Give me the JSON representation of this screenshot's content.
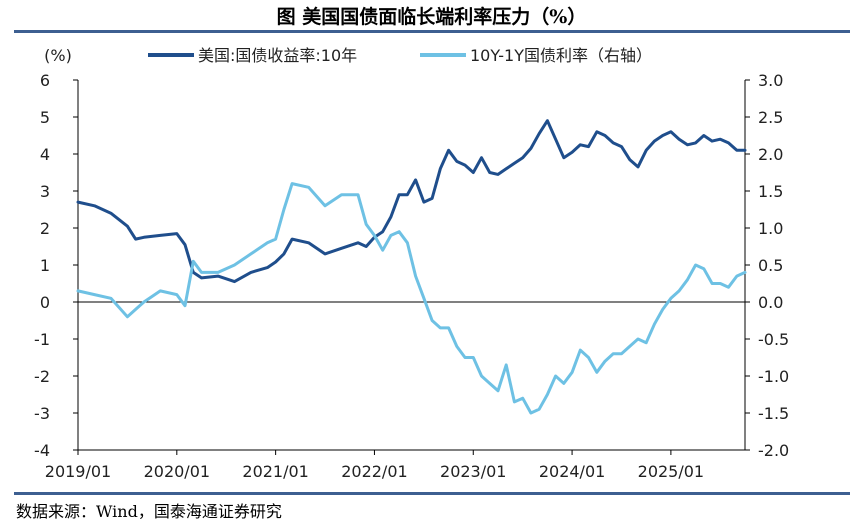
{
  "title": "图  美国国债面临长端利率压力（%）",
  "source": "数据来源：Wind，国泰海通证券研究",
  "colors": {
    "series1": "#1f4e8c",
    "series2": "#6ec1e4",
    "rule": "#3d5f91",
    "axis": "#000000"
  },
  "chart_data": {
    "type": "line",
    "x_ticks": [
      "2019/01",
      "2020/01",
      "2021/01",
      "2022/01",
      "2023/01",
      "2024/01",
      "2025/01"
    ],
    "x_range": [
      "2019/01",
      "2025/10"
    ],
    "left_axis": {
      "label": "(%)",
      "min": -4,
      "max": 6,
      "ticks": [
        "6",
        "5",
        "4",
        "3",
        "2",
        "1",
        "0",
        "-1",
        "-2",
        "-3",
        "-4"
      ]
    },
    "right_axis": {
      "min": -2.0,
      "max": 3.0,
      "ticks": [
        "3.0",
        "2.5",
        "2.0",
        "1.5",
        "1.0",
        "0.5",
        "0.0",
        "-0.5",
        "-1.0",
        "-1.5",
        "-2.0"
      ]
    },
    "grid": false,
    "legend_position": "top",
    "series": [
      {
        "name": "美国:国债收益率:10年",
        "axis": "left",
        "x": [
          "2019/01",
          "2019/03",
          "2019/05",
          "2019/07",
          "2019/08",
          "2019/09",
          "2019/11",
          "2020/01",
          "2020/02",
          "2020/03",
          "2020/04",
          "2020/06",
          "2020/08",
          "2020/10",
          "2020/12",
          "2021/01",
          "2021/02",
          "2021/03",
          "2021/05",
          "2021/07",
          "2021/09",
          "2021/11",
          "2021/12",
          "2022/01",
          "2022/02",
          "2022/03",
          "2022/04",
          "2022/05",
          "2022/06",
          "2022/07",
          "2022/08",
          "2022/09",
          "2022/10",
          "2022/11",
          "2022/12",
          "2023/01",
          "2023/02",
          "2023/03",
          "2023/04",
          "2023/05",
          "2023/06",
          "2023/07",
          "2023/08",
          "2023/09",
          "2023/10",
          "2023/11",
          "2023/12",
          "2024/01",
          "2024/02",
          "2024/03",
          "2024/04",
          "2024/05",
          "2024/06",
          "2024/07",
          "2024/08",
          "2024/09",
          "2024/10",
          "2024/11",
          "2024/12",
          "2025/01",
          "2025/02",
          "2025/03",
          "2025/04",
          "2025/05",
          "2025/06",
          "2025/07",
          "2025/08",
          "2025/09",
          "2025/10"
        ],
        "y": [
          2.7,
          2.6,
          2.4,
          2.05,
          1.7,
          1.75,
          1.8,
          1.85,
          1.55,
          0.8,
          0.65,
          0.7,
          0.55,
          0.8,
          0.93,
          1.08,
          1.3,
          1.7,
          1.6,
          1.3,
          1.45,
          1.6,
          1.5,
          1.75,
          1.9,
          2.3,
          2.9,
          2.9,
          3.3,
          2.7,
          2.8,
          3.6,
          4.1,
          3.8,
          3.7,
          3.5,
          3.9,
          3.5,
          3.45,
          3.6,
          3.75,
          3.9,
          4.15,
          4.55,
          4.9,
          4.4,
          3.9,
          4.05,
          4.25,
          4.2,
          4.6,
          4.5,
          4.3,
          4.2,
          3.85,
          3.65,
          4.1,
          4.35,
          4.5,
          4.6,
          4.4,
          4.25,
          4.3,
          4.5,
          4.35,
          4.4,
          4.3,
          4.1,
          4.1
        ]
      },
      {
        "name": "10Y-1Y国债利率（右轴）",
        "axis": "right",
        "x": [
          "2019/01",
          "2019/03",
          "2019/05",
          "2019/07",
          "2019/08",
          "2019/09",
          "2019/11",
          "2020/01",
          "2020/02",
          "2020/03",
          "2020/04",
          "2020/06",
          "2020/08",
          "2020/10",
          "2020/12",
          "2021/01",
          "2021/02",
          "2021/03",
          "2021/05",
          "2021/07",
          "2021/09",
          "2021/11",
          "2021/12",
          "2022/01",
          "2022/02",
          "2022/03",
          "2022/04",
          "2022/05",
          "2022/06",
          "2022/07",
          "2022/08",
          "2022/09",
          "2022/10",
          "2022/11",
          "2022/12",
          "2023/01",
          "2023/02",
          "2023/03",
          "2023/04",
          "2023/05",
          "2023/06",
          "2023/07",
          "2023/08",
          "2023/09",
          "2023/10",
          "2023/11",
          "2023/12",
          "2024/01",
          "2024/02",
          "2024/03",
          "2024/04",
          "2024/05",
          "2024/06",
          "2024/07",
          "2024/08",
          "2024/09",
          "2024/10",
          "2024/11",
          "2024/12",
          "2025/01",
          "2025/02",
          "2025/03",
          "2025/04",
          "2025/05",
          "2025/06",
          "2025/07",
          "2025/08",
          "2025/09",
          "2025/10"
        ],
        "y": [
          0.15,
          0.1,
          0.05,
          -0.2,
          -0.1,
          0.0,
          0.15,
          0.1,
          -0.05,
          0.55,
          0.4,
          0.4,
          0.5,
          0.65,
          0.8,
          0.85,
          1.25,
          1.6,
          1.55,
          1.3,
          1.45,
          1.45,
          1.05,
          0.9,
          0.7,
          0.9,
          0.95,
          0.8,
          0.35,
          0.05,
          -0.25,
          -0.35,
          -0.35,
          -0.6,
          -0.75,
          -0.75,
          -1.0,
          -1.1,
          -1.2,
          -0.85,
          -1.35,
          -1.3,
          -1.5,
          -1.45,
          -1.25,
          -1.0,
          -1.1,
          -0.95,
          -0.65,
          -0.75,
          -0.95,
          -0.8,
          -0.7,
          -0.7,
          -0.6,
          -0.5,
          -0.55,
          -0.3,
          -0.1,
          0.05,
          0.15,
          0.3,
          0.5,
          0.45,
          0.25,
          0.25,
          0.2,
          0.35,
          0.4
        ]
      }
    ]
  }
}
